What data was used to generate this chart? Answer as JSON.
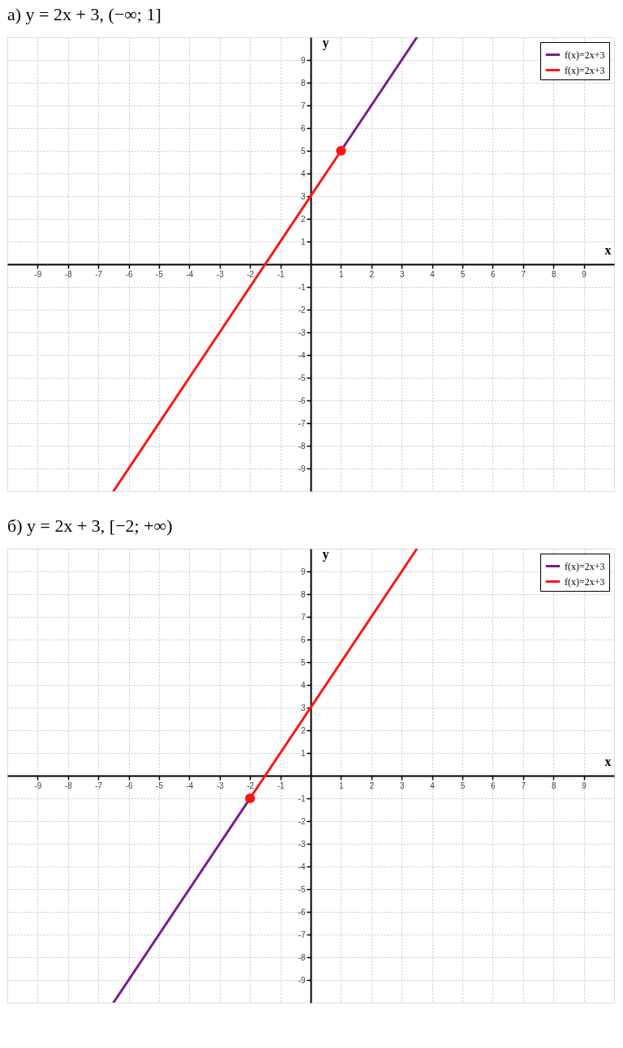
{
  "chart_data": [
    {
      "type": "line",
      "title": "а) y = 2x + 3,    (−∞; 1]",
      "xlabel": "x",
      "ylabel": "y",
      "xlim": [
        -10,
        10
      ],
      "ylim": [
        -10,
        10
      ],
      "xticks": [
        -9,
        -8,
        -7,
        -6,
        -5,
        -4,
        -3,
        -2,
        -1,
        1,
        2,
        3,
        4,
        5,
        6,
        7,
        8,
        9
      ],
      "yticks": [
        -9,
        -8,
        -7,
        -6,
        -5,
        -4,
        -3,
        -2,
        -1,
        1,
        2,
        3,
        4,
        5,
        6,
        7,
        8,
        9
      ],
      "grid": true,
      "legend": "top right",
      "line_style": "solid",
      "marker": "none",
      "series": [
        {
          "name": "f(x)=2x+3",
          "color": "#7b1a8c",
          "x": [
            1,
            3.5
          ],
          "values": [
            5,
            10
          ]
        },
        {
          "name": "f(x)=2x+3",
          "color": "#ff1414",
          "x": [
            -6.5,
            1
          ],
          "values": [
            -10,
            5
          ]
        },
        {
          "type": "scatter",
          "marker": "circle",
          "color": "#ff1414",
          "x": [
            1
          ],
          "values": [
            5
          ]
        }
      ]
    },
    {
      "type": "line",
      "title": "б) y = 2x + 3,    [−2; +∞)",
      "xlabel": "x",
      "ylabel": "y",
      "xlim": [
        -10,
        10
      ],
      "ylim": [
        -10,
        10
      ],
      "xticks": [
        -9,
        -8,
        -7,
        -6,
        -5,
        -4,
        -3,
        -2,
        -1,
        1,
        2,
        3,
        4,
        5,
        6,
        7,
        8,
        9
      ],
      "yticks": [
        -9,
        -8,
        -7,
        -6,
        -5,
        -4,
        -3,
        -2,
        -1,
        1,
        2,
        3,
        4,
        5,
        6,
        7,
        8,
        9
      ],
      "grid": true,
      "legend": "top right",
      "line_style": "solid",
      "marker": "none",
      "series": [
        {
          "name": "f(x)=2x+3",
          "color": "#7b1a8c",
          "x": [
            -6.5,
            -2
          ],
          "values": [
            -10,
            -1
          ]
        },
        {
          "name": "f(x)=2x+3",
          "color": "#ff1414",
          "x": [
            -2,
            3.5
          ],
          "values": [
            -1,
            10
          ]
        },
        {
          "type": "scatter",
          "marker": "circle",
          "color": "#ff1414",
          "x": [
            -2
          ],
          "values": [
            -1
          ]
        }
      ]
    }
  ]
}
